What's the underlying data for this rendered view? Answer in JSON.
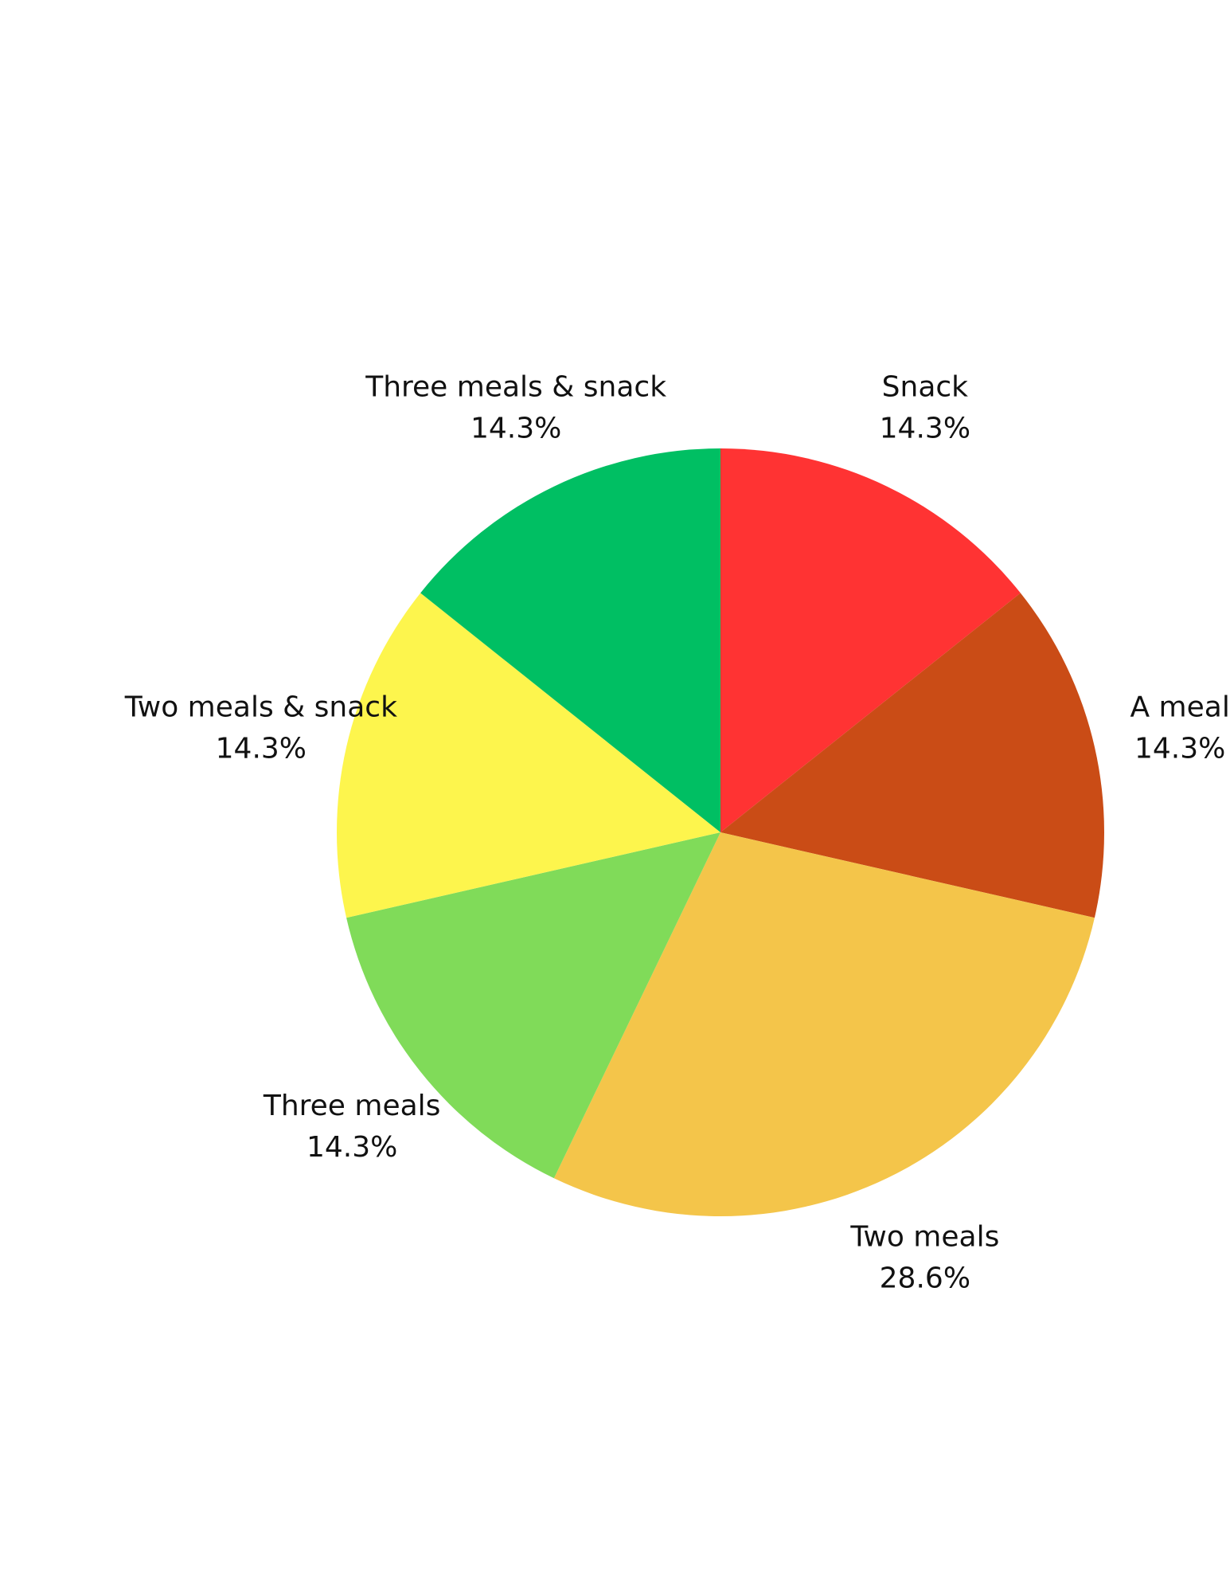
{
  "chart_data": {
    "type": "pie",
    "title": "",
    "slices": [
      {
        "label": "Snack",
        "value": 14.3,
        "value_label": "14.3%",
        "color": "#FF3333"
      },
      {
        "label": "A meal",
        "value": 14.3,
        "value_label": "14.3%",
        "color": "#CA4C16"
      },
      {
        "label": "Two meals",
        "value": 28.6,
        "value_label": "28.6%",
        "color": "#F4C54A"
      },
      {
        "label": "Three meals",
        "value": 14.3,
        "value_label": "14.3%",
        "color": "#80DB59"
      },
      {
        "label": "Two meals & snack",
        "value": 14.3,
        "value_label": "14.3%",
        "color": "#FDF54D"
      },
      {
        "label": "Three meals & snack",
        "value": 14.3,
        "value_label": "14.3%",
        "color": "#00BF63"
      }
    ],
    "start_angle_deg": 0,
    "direction": "clockwise",
    "legend": "none"
  }
}
